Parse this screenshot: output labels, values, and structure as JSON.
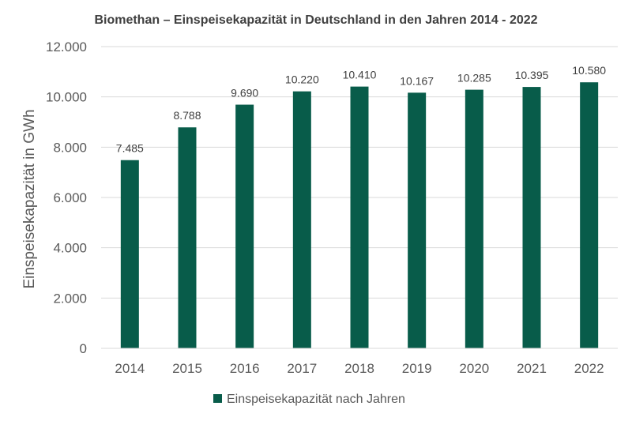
{
  "chart_data": {
    "type": "bar",
    "title": "Biomethan – Einspeisekapazität in Deutschland in den Jahren 2014 - 2022",
    "xlabel": "",
    "ylabel": "Einspeisekapazität in GWh",
    "categories": [
      "2014",
      "2015",
      "2016",
      "2017",
      "2018",
      "2019",
      "2020",
      "2021",
      "2022"
    ],
    "series": [
      {
        "name": "Einspeisekapazität nach Jahren",
        "values": [
          7485,
          8788,
          9690,
          10220,
          10410,
          10167,
          10285,
          10395,
          10580
        ],
        "labels": [
          "7.485",
          "8.788",
          "9.690",
          "10.220",
          "10.410",
          "10.167",
          "10.285",
          "10.395",
          "10.580"
        ],
        "color": "#085c4a"
      }
    ],
    "ylim": [
      0,
      12000
    ],
    "yticks": [
      0,
      2000,
      4000,
      6000,
      8000,
      10000,
      12000
    ],
    "ytick_labels": [
      "0",
      "2.000",
      "4.000",
      "6.000",
      "8.000",
      "10.000",
      "12.000"
    ],
    "grid": true,
    "legend_position": "bottom-center"
  }
}
